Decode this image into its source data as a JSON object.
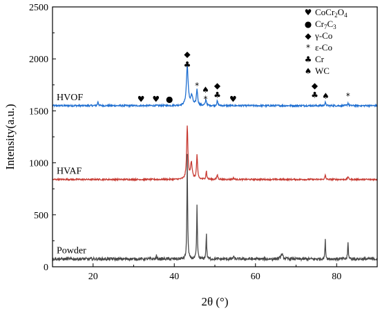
{
  "chart_data": {
    "type": "line",
    "xlabel": "2θ (°)",
    "ylabel": "Intensity(a.u.)",
    "xlim": [
      10,
      90
    ],
    "ylim": [
      0,
      2500
    ],
    "xticks": [
      "20",
      "40",
      "60",
      "80"
    ],
    "yticks": [
      "0",
      "500",
      "1000",
      "1500",
      "2000",
      "2500"
    ],
    "series": [
      {
        "name": "HVOF",
        "color": "#1f6fd1",
        "baseline": 1550,
        "noise": 8,
        "peaks": [
          {
            "x": 21.2,
            "h": 40,
            "w": 0.12
          },
          {
            "x": 43.2,
            "h": 380,
            "w": 0.25
          },
          {
            "x": 44.3,
            "h": 90,
            "w": 0.3
          },
          {
            "x": 45.6,
            "h": 155,
            "w": 0.18
          },
          {
            "x": 47.8,
            "h": 60,
            "w": 0.15
          },
          {
            "x": 50.6,
            "h": 45,
            "w": 0.15
          },
          {
            "x": 77.2,
            "h": 30,
            "w": 0.15
          },
          {
            "x": 82.8,
            "h": 25,
            "w": 0.15
          }
        ]
      },
      {
        "name": "HVAF",
        "color": "#c73a32",
        "baseline": 840,
        "noise": 7,
        "peaks": [
          {
            "x": 43.2,
            "h": 510,
            "w": 0.18
          },
          {
            "x": 44.2,
            "h": 160,
            "w": 0.25
          },
          {
            "x": 45.6,
            "h": 230,
            "w": 0.15
          },
          {
            "x": 47.9,
            "h": 80,
            "w": 0.13
          },
          {
            "x": 50.6,
            "h": 45,
            "w": 0.15
          },
          {
            "x": 54.6,
            "h": 15,
            "w": 0.15
          },
          {
            "x": 77.2,
            "h": 40,
            "w": 0.13
          },
          {
            "x": 82.8,
            "h": 30,
            "w": 0.13
          }
        ]
      },
      {
        "name": "Powder",
        "color": "#4a4a4a",
        "baseline": 75,
        "noise": 14,
        "peaks": [
          {
            "x": 43.2,
            "h": 1000,
            "w": 0.1
          },
          {
            "x": 45.6,
            "h": 520,
            "w": 0.1
          },
          {
            "x": 47.9,
            "h": 240,
            "w": 0.1
          },
          {
            "x": 77.2,
            "h": 180,
            "w": 0.1
          },
          {
            "x": 82.8,
            "h": 160,
            "w": 0.1
          },
          {
            "x": 54.6,
            "h": 30,
            "w": 0.1
          },
          {
            "x": 35.6,
            "h": 30,
            "w": 0.1
          },
          {
            "x": 66.5,
            "h": 45,
            "w": 0.3
          }
        ]
      }
    ],
    "legend": [
      {
        "symbol": "♥",
        "label": "CoCr2O4",
        "parts": [
          [
            "CoCr",
            ""
          ],
          [
            "2",
            "sub"
          ],
          [
            "O",
            ""
          ],
          [
            "4",
            "sub"
          ]
        ]
      },
      {
        "symbol": "●",
        "label": "Cr7C3",
        "parts": [
          [
            "Cr",
            ""
          ],
          [
            "7",
            "sub"
          ],
          [
            "C",
            ""
          ],
          [
            "3",
            "sub"
          ]
        ]
      },
      {
        "symbol": "◆",
        "label": "γ-Co",
        "parts": [
          [
            "γ-Co",
            ""
          ]
        ]
      },
      {
        "symbol": "*",
        "label": "ε-Co",
        "parts": [
          [
            "ε-Co",
            ""
          ]
        ]
      },
      {
        "symbol": "♣",
        "label": "Cr",
        "parts": [
          [
            "Cr",
            ""
          ]
        ]
      },
      {
        "symbol": "♠",
        "label": "WC",
        "parts": [
          [
            "WC",
            ""
          ]
        ]
      }
    ],
    "legend_position": "top-right",
    "annotations": [
      {
        "symbol": "♥",
        "x": 31.8,
        "y": 1620
      },
      {
        "symbol": "♥",
        "x": 35.5,
        "y": 1620
      },
      {
        "symbol": "●",
        "x": 38.8,
        "y": 1620
      },
      {
        "symbol": "◆",
        "x": 43.2,
        "y": 2050
      },
      {
        "symbol": "♣",
        "x": 43.2,
        "y": 1950
      },
      {
        "symbol": "*",
        "x": 45.6,
        "y": 1750
      },
      {
        "symbol": "♠",
        "x": 47.7,
        "y": 1710
      },
      {
        "symbol": "*",
        "x": 47.7,
        "y": 1620
      },
      {
        "symbol": "◆",
        "x": 50.6,
        "y": 1750
      },
      {
        "symbol": "♣",
        "x": 50.6,
        "y": 1660
      },
      {
        "symbol": "♥",
        "x": 54.5,
        "y": 1620
      },
      {
        "symbol": "◆",
        "x": 74.6,
        "y": 1750
      },
      {
        "symbol": "♣",
        "x": 74.6,
        "y": 1660
      },
      {
        "symbol": "♠",
        "x": 77.3,
        "y": 1650
      },
      {
        "symbol": "*",
        "x": 82.8,
        "y": 1650
      }
    ]
  }
}
